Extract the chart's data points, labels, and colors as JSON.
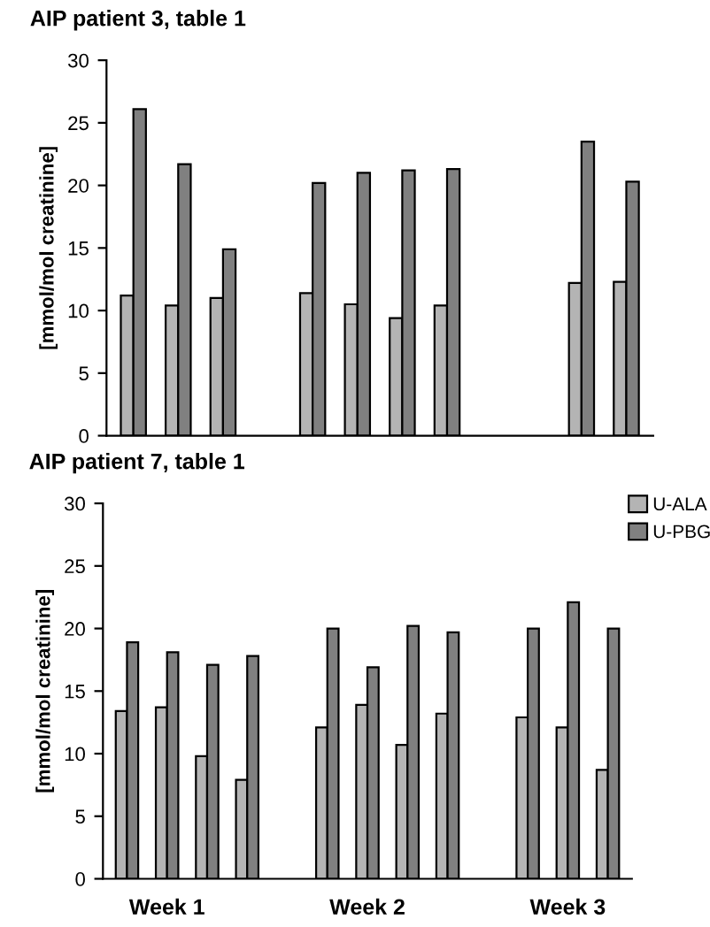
{
  "chart_data": [
    {
      "type": "bar",
      "title": "AIP patient 3, table 1",
      "ylabel": "[mmol/mol creatinine]",
      "categories": [
        null,
        null,
        null,
        null,
        null,
        null,
        null,
        null,
        null,
        null,
        null,
        null
      ],
      "series": [
        {
          "color": "#b4b4b4",
          "values": [
            11.2,
            10.4,
            11.0,
            null,
            11.4,
            10.5,
            9.4,
            10.4,
            null,
            null,
            12.2,
            12.3
          ]
        },
        {
          "color": "#808080",
          "values": [
            26.1,
            21.7,
            14.9,
            null,
            20.2,
            21.0,
            21.2,
            21.3,
            null,
            null,
            23.5,
            20.3
          ]
        }
      ],
      "ylim": [
        0,
        30
      ],
      "yticks": [
        0,
        5,
        10,
        15,
        20,
        25,
        30
      ],
      "grid": false
    },
    {
      "type": "bar",
      "title": "AIP patient 7, table 1",
      "ylabel": "[mmol/mol creatinine]",
      "categories": [
        null,
        "Week 1",
        null,
        null,
        null,
        null,
        "Week 2",
        null,
        null,
        null,
        null,
        "Week 3",
        null
      ],
      "series": [
        {
          "name": "U-ALA",
          "color": "#b4b4b4",
          "values": [
            13.4,
            13.7,
            9.8,
            7.9,
            null,
            12.1,
            13.9,
            10.7,
            13.2,
            null,
            12.9,
            12.1,
            8.7
          ]
        },
        {
          "name": "U-PBG",
          "color": "#808080",
          "values": [
            18.9,
            18.1,
            17.1,
            17.8,
            null,
            20.0,
            16.9,
            20.2,
            19.7,
            null,
            20.0,
            22.1,
            20.0
          ]
        }
      ],
      "ylim": [
        0,
        30
      ],
      "yticks": [
        0,
        5,
        10,
        15,
        20,
        25,
        30
      ],
      "grid": false,
      "legend": "top right"
    }
  ]
}
